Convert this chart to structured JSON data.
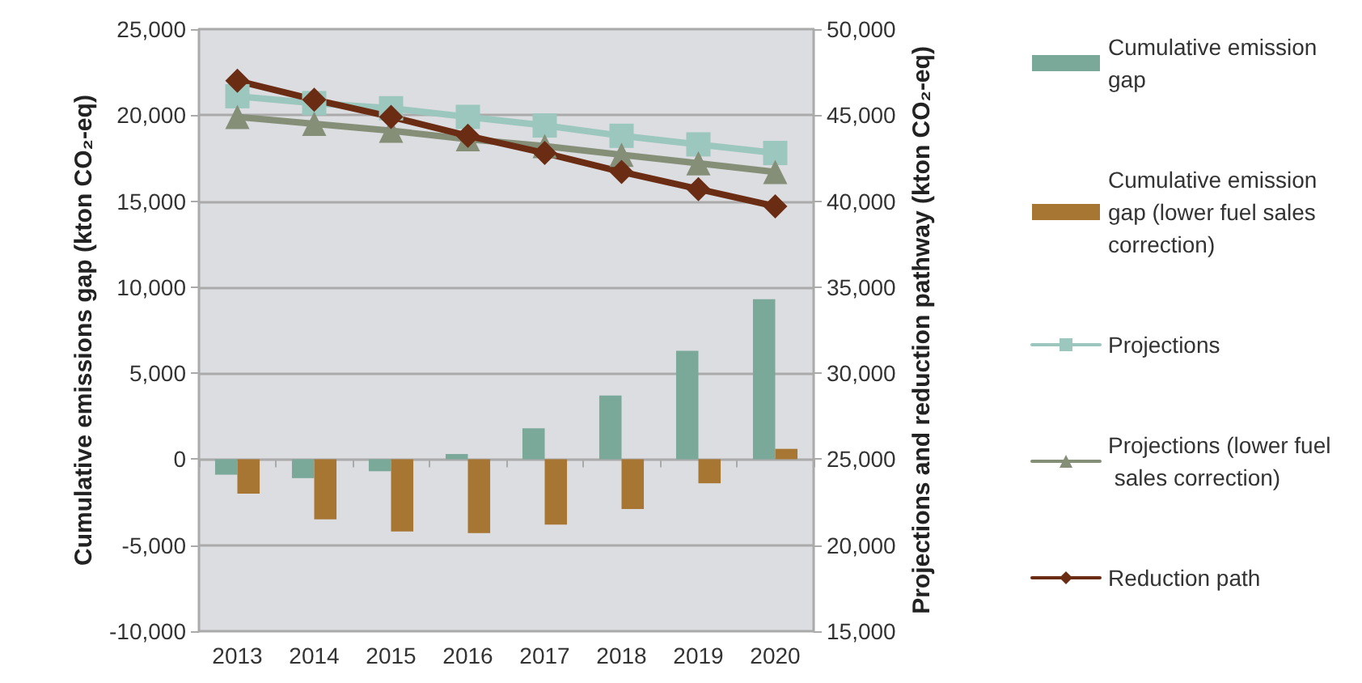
{
  "chart_data": {
    "type": "bar",
    "categories": [
      "2013",
      "2014",
      "2015",
      "2016",
      "2017",
      "2018",
      "2019",
      "2020"
    ],
    "ylabel": "Cumulative emissions gap (kton CO₂-eq)",
    "y2label": "Projections and reduction pathway (kton CO₂-eq)",
    "ylim": [
      -10000,
      25000
    ],
    "yticks": [
      {
        "value": -10000,
        "label": "-10,000"
      },
      {
        "value": -5000,
        "label": "-5,000"
      },
      {
        "value": 0,
        "label": "0"
      },
      {
        "value": 5000,
        "label": "5,000"
      },
      {
        "value": 10000,
        "label": "10,000"
      },
      {
        "value": 15000,
        "label": "15,000"
      },
      {
        "value": 20000,
        "label": "20,000"
      },
      {
        "value": 25000,
        "label": "25,000"
      }
    ],
    "y2lim": [
      15000,
      50000
    ],
    "y2ticks": [
      {
        "value": 15000,
        "label": "15,000"
      },
      {
        "value": 20000,
        "label": "20,000"
      },
      {
        "value": 25000,
        "label": "25,000"
      },
      {
        "value": 30000,
        "label": "30,000"
      },
      {
        "value": 35000,
        "label": "35,000"
      },
      {
        "value": 40000,
        "label": "40,000"
      },
      {
        "value": 45000,
        "label": "45,000"
      },
      {
        "value": 50000,
        "label": "50,000"
      }
    ],
    "grid": "y",
    "legend": "right",
    "series": [
      {
        "name": "Cumulative emission gap",
        "color": "#7aa899",
        "values": [
          -900,
          -1100,
          -700,
          300,
          1800,
          3700,
          6300,
          9300
        ]
      },
      {
        "name": "Cumulative emission gap (lower fuel sales correction)",
        "color": "#a67632",
        "values": [
          -2000,
          -3500,
          -4200,
          -4300,
          -3800,
          -2900,
          -1400,
          600
        ]
      },
      {
        "name": "Projections",
        "type": "line",
        "axis": "y2",
        "marker": "square",
        "color": "#9cc7be",
        "values": [
          46100,
          45700,
          45400,
          44900,
          44400,
          43800,
          43300,
          42800
        ]
      },
      {
        "name": "Projections (lower fuel sales correction)",
        "type": "line",
        "axis": "y2",
        "marker": "triangle",
        "color": "#858f78",
        "values": [
          44900,
          44500,
          44100,
          43600,
          43200,
          42700,
          42200,
          41700
        ]
      },
      {
        "name": "Reduction path",
        "type": "line",
        "axis": "y2",
        "marker": "diamond",
        "color": "#6b2c14",
        "values": [
          47000,
          45900,
          44900,
          43800,
          42800,
          41700,
          40700,
          39700
        ]
      }
    ]
  }
}
